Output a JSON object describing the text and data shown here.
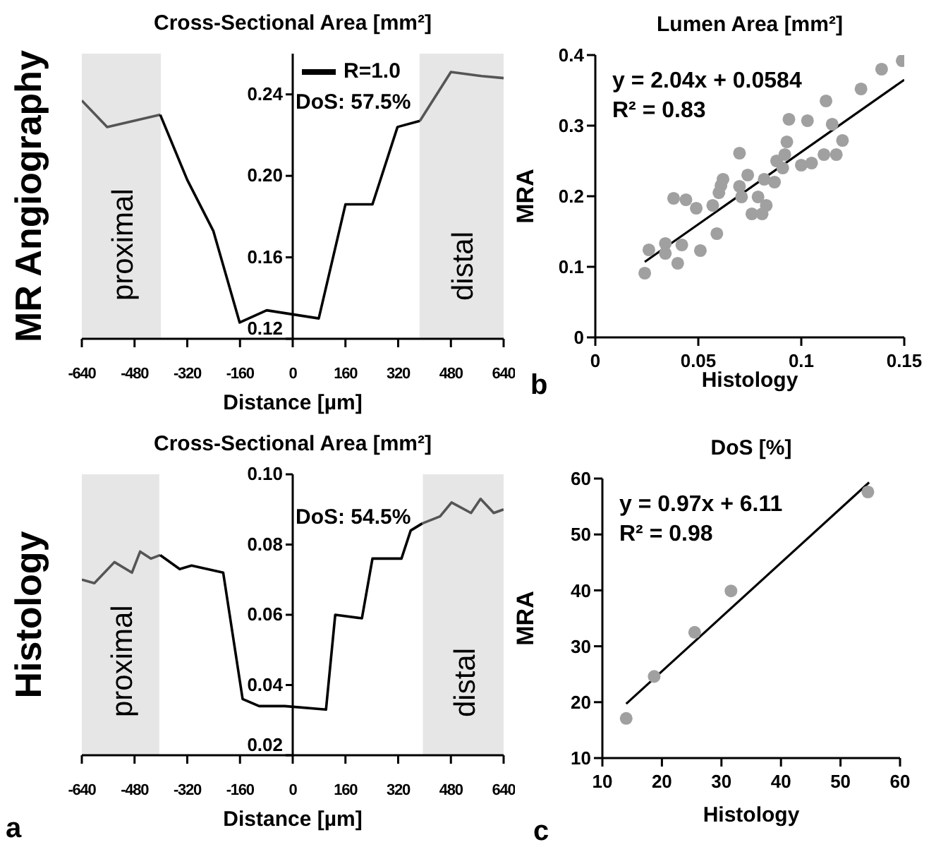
{
  "chart_data": [
    {
      "type": "line",
      "title": "Cross-Sectional Area [mm²]",
      "xlabel": "Distance [µm]",
      "ylabel": "MR Angiography",
      "xlim": [
        -640,
        640
      ],
      "xticks": [
        -640,
        -480,
        -320,
        -160,
        0,
        160,
        320,
        480,
        640
      ],
      "ylim": [
        0.12,
        0.26
      ],
      "yticks": [
        0.12,
        0.16,
        {
          "value": 0.2,
          "label": "0.20"
        },
        0.24
      ],
      "legend": "top",
      "annotations": [
        "DoS: 57.5%"
      ],
      "bands": [
        {
          "axis": "x",
          "from": -640,
          "to": -400,
          "label": "proximal",
          "color": "#e6e6e6"
        },
        {
          "axis": "x",
          "from": 385,
          "to": 640,
          "label": "distal",
          "color": "#e6e6e6"
        }
      ],
      "series": [
        {
          "color": "#555555",
          "x": [
            -640,
            -563,
            -402
          ],
          "values": [
            0.237,
            0.224,
            0.23
          ]
        },
        {
          "name": "R=1.0",
          "color": "#000000",
          "x": [
            -402,
            -320,
            -241,
            -161,
            -79,
            0,
            79,
            160,
            242,
            318,
            386
          ],
          "values": [
            0.23,
            0.198,
            0.173,
            0.128,
            0.134,
            0.132,
            0.13,
            0.186,
            0.186,
            0.224,
            0.227
          ]
        },
        {
          "color": "#555555",
          "x": [
            386,
            480,
            573,
            640
          ],
          "values": [
            0.227,
            0.251,
            0.249,
            0.248
          ]
        }
      ]
    },
    {
      "type": "scatter",
      "title": "Lumen Area [mm²]",
      "xlabel": "Histology",
      "ylabel": "MRA",
      "xlim": [
        0,
        0.15
      ],
      "xticks": [
        0,
        0.05,
        0.1,
        0.15
      ],
      "ylim": [
        0,
        0.4
      ],
      "yticks": [
        0,
        0.1,
        0.2,
        0.3,
        0.4
      ],
      "annotations": [
        "y = 2.04x + 0.0584",
        "R² = 0.83",
        "b"
      ],
      "series": [
        {
          "color": "#a0a0a0",
          "marker": "circle",
          "x": [
            0.024,
            0.026,
            0.034,
            0.034,
            0.038,
            0.04,
            0.042,
            0.044,
            0.049,
            0.051,
            0.057,
            0.059,
            0.06,
            0.061,
            0.062,
            0.07,
            0.07,
            0.071,
            0.074,
            0.076,
            0.079,
            0.081,
            0.082,
            0.083,
            0.087,
            0.088,
            0.091,
            0.092,
            0.093,
            0.094,
            0.1,
            0.103,
            0.105,
            0.111,
            0.112,
            0.115,
            0.117,
            0.12,
            0.129,
            0.139,
            0.149
          ],
          "values": [
            0.091,
            0.124,
            0.133,
            0.119,
            0.197,
            0.105,
            0.131,
            0.195,
            0.183,
            0.123,
            0.187,
            0.147,
            0.205,
            0.215,
            0.224,
            0.261,
            0.214,
            0.199,
            0.23,
            0.175,
            0.199,
            0.175,
            0.224,
            0.187,
            0.22,
            0.25,
            0.24,
            0.259,
            0.277,
            0.309,
            0.244,
            0.307,
            0.247,
            0.259,
            0.335,
            0.302,
            0.259,
            0.279,
            0.352,
            0.38,
            0.392
          ]
        },
        {
          "type": "line",
          "color": "#000000",
          "x": [
            0.024,
            0.15
          ],
          "values": [
            0.107,
            0.365
          ]
        }
      ]
    },
    {
      "type": "line",
      "title": "Cross-Sectional Area [mm²]",
      "xlabel": "Distance [µm]",
      "ylabel": "Histology",
      "xlim": [
        -640,
        640
      ],
      "xticks": [
        -640,
        -480,
        -320,
        -160,
        0,
        160,
        320,
        480,
        640
      ],
      "ylim": [
        0.02,
        0.1
      ],
      "yticks": [
        0.02,
        0.04,
        0.06,
        0.08,
        {
          "value": 0.1,
          "label": "0.10"
        }
      ],
      "annotations": [
        "DoS: 54.5%",
        "a"
      ],
      "bands": [
        {
          "axis": "x",
          "from": -640,
          "to": -405,
          "label": "proximal",
          "color": "#e6e6e6"
        },
        {
          "axis": "x",
          "from": 395,
          "to": 640,
          "label": "distal",
          "color": "#e6e6e6"
        }
      ],
      "series": [
        {
          "color": "#555555",
          "x": [
            -640,
            -602,
            -541,
            -488,
            -463,
            -430,
            -402
          ],
          "values": [
            0.07,
            0.069,
            0.075,
            0.072,
            0.078,
            0.076,
            0.077
          ]
        },
        {
          "color": "#000000",
          "x": [
            -402,
            -343,
            -307,
            -211,
            -152,
            -102,
            -24,
            101,
            129,
            210,
            242,
            330,
            358,
            393
          ],
          "values": [
            0.077,
            0.073,
            0.074,
            0.072,
            0.036,
            0.034,
            0.034,
            0.033,
            0.06,
            0.059,
            0.076,
            0.076,
            0.084,
            0.086
          ]
        },
        {
          "color": "#555555",
          "x": [
            393,
            447,
            482,
            541,
            570,
            610,
            640
          ],
          "values": [
            0.086,
            0.088,
            0.092,
            0.089,
            0.093,
            0.089,
            0.09
          ]
        }
      ]
    },
    {
      "type": "scatter",
      "title": "DoS [%]",
      "xlabel": "Histology",
      "ylabel": "MRA",
      "xlim": [
        10,
        60
      ],
      "xticks": [
        10,
        20,
        30,
        40,
        50,
        60
      ],
      "ylim": [
        10,
        60
      ],
      "yticks": [
        10,
        20,
        30,
        40,
        50,
        60
      ],
      "annotations": [
        "y = 0.97x + 6.11",
        "R² = 0.98",
        "c"
      ],
      "series": [
        {
          "color": "#a0a0a0",
          "marker": "circle",
          "x": [
            14,
            18.7,
            25.5,
            31.6,
            54.6
          ],
          "values": [
            17.1,
            24.6,
            32.5,
            39.9,
            57.6
          ]
        },
        {
          "type": "line",
          "color": "#000000",
          "x": [
            14,
            54.8
          ],
          "values": [
            19.7,
            59.3
          ]
        }
      ]
    }
  ]
}
